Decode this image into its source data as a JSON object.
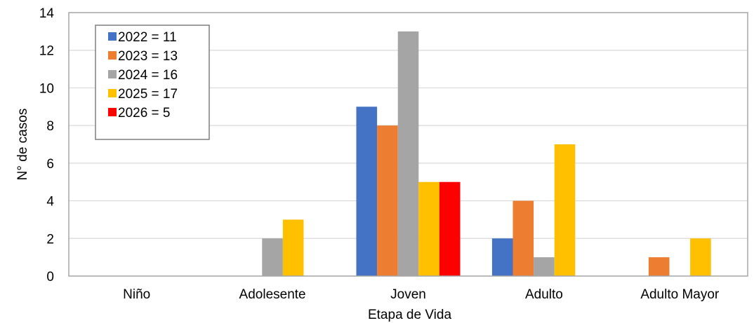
{
  "chart_data": {
    "type": "bar",
    "categories": [
      "Niño",
      "Adolesente",
      "Joven",
      "Adulto",
      "Adulto Mayor"
    ],
    "series": [
      {
        "name": "2022 = 11",
        "color": "#4472C4",
        "values": [
          0,
          0,
          9,
          2,
          0
        ]
      },
      {
        "name": "2023 = 13",
        "color": "#ED7D31",
        "values": [
          0,
          0,
          8,
          4,
          1
        ]
      },
      {
        "name": "2024 = 16",
        "color": "#A5A5A5",
        "values": [
          0,
          2,
          13,
          1,
          0
        ]
      },
      {
        "name": "2025 = 17",
        "color": "#FFC000",
        "values": [
          0,
          3,
          5,
          7,
          2
        ]
      },
      {
        "name": "2026 = 5",
        "color": "#FF0000",
        "values": [
          0,
          0,
          5,
          0,
          0
        ]
      }
    ],
    "title": "",
    "xlabel": "Etapa de Vida",
    "ylabel": "N° de casos",
    "ylim": [
      0,
      14
    ],
    "yticks": [
      0,
      2,
      4,
      6,
      8,
      10,
      12,
      14
    ],
    "grid": true,
    "legend_position": "top-left"
  }
}
